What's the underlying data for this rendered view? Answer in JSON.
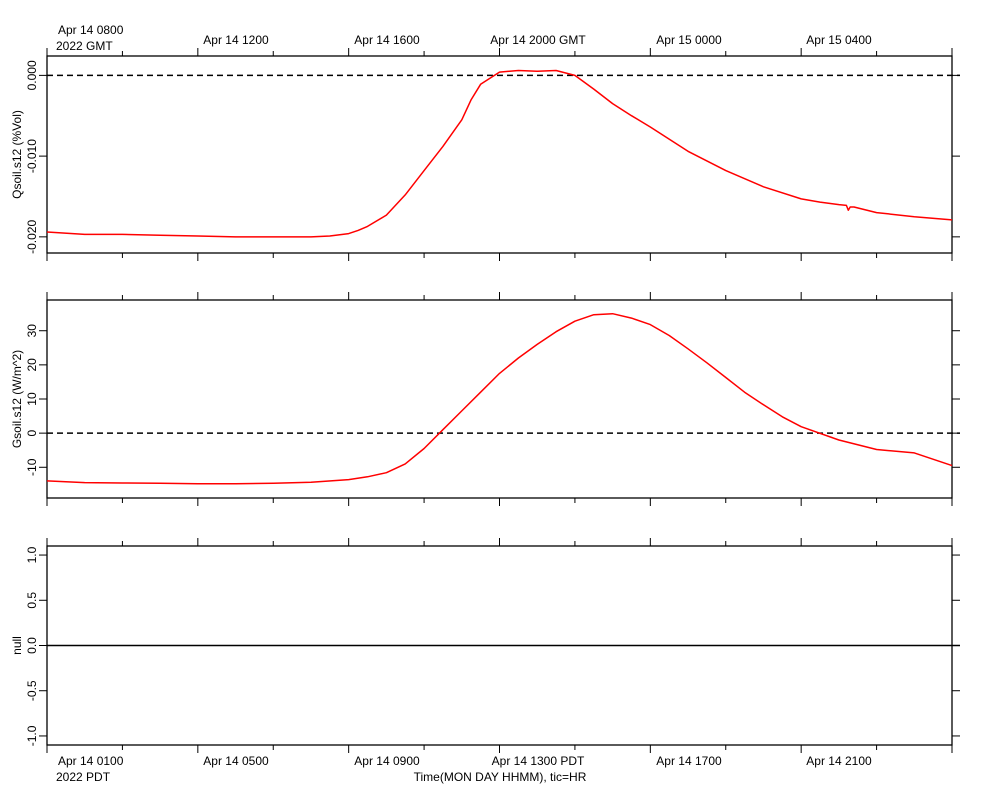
{
  "top_axis": {
    "first_label_line1": "Apr 14 0800",
    "first_label_line2": "2022 GMT",
    "labels": [
      "Apr 14 1200",
      "Apr 14 1600",
      "Apr 14 2000 GMT",
      "Apr 15 0000",
      "Apr 15 0400"
    ]
  },
  "bottom_axis": {
    "first_label_line1": "Apr 14 0100",
    "first_label_line2": "2022 PDT",
    "labels": [
      "Apr 14 0500",
      "Apr 14 0900",
      "Apr 14 1300 PDT",
      "Apr 14 1700",
      "Apr 14 2100"
    ],
    "title": "Time(MON DAY HHMM), tic=HR"
  },
  "colors": {
    "series": "#ff0000",
    "axes": "#000000",
    "reference": "#000000"
  },
  "chart_data": [
    {
      "type": "line",
      "ylabel": "Qsoil.s12 (%Vol)",
      "x_units": "hours since Apr 14 0100 PDT",
      "xlim": [
        0,
        24
      ],
      "ylim": [
        -0.022,
        0.0024
      ],
      "yticks": [
        0,
        -0.01,
        -0.02
      ],
      "ytick_labels": [
        "0.000",
        "-0.010",
        "-0.020"
      ],
      "reference_line": 0,
      "reference_style": "dashed",
      "series": [
        {
          "x": [
            0,
            1,
            2,
            3,
            4,
            5,
            6,
            7,
            7.5,
            8,
            8.25,
            8.5,
            9,
            9.5,
            10,
            10.5,
            11,
            11.25,
            11.5,
            12,
            12.5,
            13,
            13.5,
            14,
            14.5,
            15,
            15.5,
            16,
            17,
            18,
            19,
            20,
            20.5,
            21,
            21.2,
            21.25,
            21.3,
            21.4,
            22,
            23,
            24
          ],
          "y": [
            -0.0194,
            -0.0197,
            -0.0197,
            -0.0198,
            -0.0199,
            -0.02,
            -0.02,
            -0.02,
            -0.0199,
            -0.0196,
            -0.0192,
            -0.0187,
            -0.0173,
            -0.0148,
            -0.0118,
            -0.0088,
            -0.0055,
            -0.003,
            -0.0011,
            0.0004,
            0.0006,
            0.0005,
            0.0006,
            0.0,
            -0.0017,
            -0.0035,
            -0.005,
            -0.0064,
            -0.0094,
            -0.0118,
            -0.0138,
            -0.0153,
            -0.0157,
            -0.016,
            -0.0161,
            -0.0167,
            -0.0163,
            -0.0163,
            -0.017,
            -0.0175,
            -0.0179
          ]
        }
      ]
    },
    {
      "type": "line",
      "ylabel": "Gsoil.s12 (W/m^2)",
      "x_units": "hours since Apr 14 0100 PDT",
      "xlim": [
        0,
        24
      ],
      "ylim": [
        -19,
        39
      ],
      "yticks": [
        -10,
        0,
        10,
        20,
        30
      ],
      "ytick_labels": [
        "-10",
        "0",
        "10",
        "20",
        "30"
      ],
      "reference_line": 0,
      "reference_style": "dashed",
      "series": [
        {
          "x": [
            0,
            1,
            2,
            3,
            4,
            5,
            6,
            7,
            8,
            8.5,
            9,
            9.5,
            10,
            10.5,
            11,
            11.5,
            12,
            12.5,
            13,
            13.5,
            14,
            14.5,
            15,
            15.5,
            16,
            16.5,
            17,
            17.5,
            18,
            18.5,
            19,
            19.5,
            20,
            21,
            22,
            23,
            24
          ],
          "y": [
            -14.0,
            -14.5,
            -14.6,
            -14.7,
            -14.8,
            -14.8,
            -14.7,
            -14.4,
            -13.6,
            -12.8,
            -11.6,
            -9.0,
            -4.5,
            1.0,
            6.5,
            12.0,
            17.5,
            22.0,
            26.0,
            29.7,
            32.8,
            34.7,
            35.0,
            33.7,
            31.8,
            28.6,
            24.7,
            20.6,
            16.3,
            12.0,
            8.3,
            4.8,
            1.9,
            -2.0,
            -4.8,
            -5.8,
            -9.5
          ]
        }
      ]
    },
    {
      "type": "line",
      "ylabel": "null",
      "x_units": "hours since Apr 14 0100 PDT",
      "xlim": [
        0,
        24
      ],
      "ylim": [
        -1.1,
        1.1
      ],
      "yticks": [
        -1,
        -0.5,
        0,
        0.5,
        1
      ],
      "ytick_labels": [
        "-1.0",
        "-0.5",
        "0.0",
        "0.5",
        "1.0"
      ],
      "reference_line": 0,
      "reference_style": "solid",
      "series": []
    }
  ]
}
